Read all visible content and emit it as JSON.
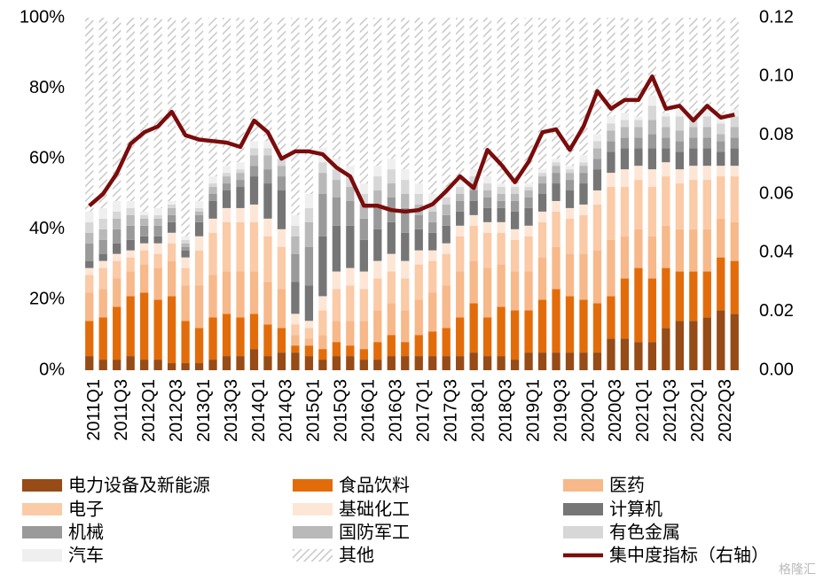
{
  "chart_data": {
    "type": "stacked_bar_line",
    "categories": [
      "2011Q1",
      null,
      "2011Q3",
      null,
      "2012Q1",
      null,
      "2012Q3",
      null,
      "2013Q1",
      null,
      "2013Q3",
      null,
      "2014Q1",
      null,
      "2014Q3",
      null,
      "2015Q1",
      null,
      "2015Q3",
      null,
      "2016Q1",
      null,
      "2016Q3",
      null,
      "2017Q1",
      null,
      "2017Q3",
      null,
      "2018Q1",
      null,
      "2018Q3",
      null,
      "2019Q1",
      null,
      "2019Q3",
      null,
      "2020Q1",
      null,
      "2020Q3",
      null,
      "2021Q1",
      null,
      "2021Q3",
      null,
      "2022Q1",
      null,
      "2022Q3",
      null
    ],
    "series": [
      {
        "name": "电力设备及新能源",
        "color": "#974b16",
        "values": [
          4,
          3,
          3,
          4,
          3,
          3,
          2,
          2,
          2,
          3,
          4,
          4,
          6,
          4,
          5,
          5,
          4,
          3,
          4,
          4,
          3,
          3,
          4,
          4,
          4,
          4,
          4,
          4,
          5,
          4,
          4,
          3,
          5,
          5,
          5,
          5,
          5,
          5,
          9,
          9,
          8,
          8,
          12,
          14,
          14,
          15,
          17,
          16
        ]
      },
      {
        "name": "食品饮料",
        "color": "#e36c0a",
        "values": [
          10,
          12,
          15,
          17,
          19,
          17,
          19,
          12,
          10,
          12,
          12,
          11,
          10,
          9,
          7,
          2,
          3,
          3,
          4,
          3,
          3,
          5,
          6,
          4,
          6,
          7,
          8,
          11,
          14,
          11,
          14,
          14,
          12,
          15,
          18,
          16,
          15,
          14,
          12,
          17,
          21,
          18,
          17,
          14,
          14,
          13,
          15,
          15
        ]
      },
      {
        "name": "医药",
        "color": "#f7b88a",
        "values": [
          8,
          8,
          8,
          7,
          8,
          9,
          10,
          10,
          12,
          12,
          12,
          13,
          12,
          12,
          11,
          3,
          2,
          4,
          6,
          7,
          8,
          9,
          9,
          9,
          10,
          11,
          12,
          13,
          12,
          14,
          12,
          11,
          11,
          12,
          12,
          12,
          13,
          15,
          16,
          12,
          11,
          12,
          12,
          12,
          12,
          12,
          11,
          11
        ]
      },
      {
        "name": "电子",
        "color": "#fbcaa6",
        "values": [
          5,
          6,
          5,
          4,
          4,
          4,
          5,
          5,
          10,
          12,
          14,
          14,
          14,
          13,
          12,
          3,
          3,
          7,
          9,
          10,
          9,
          9,
          9,
          9,
          10,
          9,
          9,
          10,
          10,
          10,
          9,
          9,
          10,
          10,
          10,
          10,
          11,
          13,
          15,
          14,
          14,
          14,
          14,
          13,
          14,
          14,
          12,
          13
        ]
      },
      {
        "name": "基础化工",
        "color": "#fde6d6",
        "values": [
          2,
          2,
          2,
          2,
          2,
          3,
          3,
          3,
          4,
          4,
          4,
          4,
          5,
          5,
          5,
          3,
          2,
          4,
          5,
          5,
          5,
          5,
          5,
          5,
          4,
          3,
          3,
          3,
          3,
          3,
          3,
          3,
          3,
          3,
          3,
          3,
          3,
          4,
          4,
          5,
          4,
          5,
          4,
          4,
          4,
          4,
          3,
          3
        ]
      },
      {
        "name": "计算机",
        "color": "#767676",
        "values": [
          2,
          2,
          3,
          3,
          2,
          2,
          3,
          2,
          4,
          5,
          5,
          6,
          8,
          10,
          11,
          9,
          10,
          17,
          13,
          12,
          9,
          9,
          9,
          8,
          6,
          5,
          5,
          4,
          4,
          4,
          4,
          5,
          5,
          5,
          5,
          5,
          6,
          6,
          6,
          6,
          5,
          6,
          4,
          5,
          5,
          5,
          4,
          5
        ]
      },
      {
        "name": "机械",
        "color": "#9a9a9a",
        "values": [
          5,
          4,
          4,
          4,
          3,
          3,
          2,
          1,
          2,
          2,
          2,
          2,
          3,
          4,
          4,
          8,
          11,
          12,
          8,
          7,
          6,
          7,
          7,
          7,
          4,
          3,
          3,
          3,
          3,
          3,
          2,
          3,
          3,
          3,
          3,
          3,
          3,
          3,
          3,
          3,
          3,
          4,
          3,
          3,
          3,
          3,
          3,
          3
        ]
      },
      {
        "name": "国防军工",
        "color": "#b9b9b9",
        "values": [
          3,
          3,
          3,
          3,
          2,
          2,
          2,
          1,
          1,
          2,
          2,
          2,
          3,
          4,
          3,
          5,
          7,
          6,
          5,
          4,
          4,
          4,
          4,
          4,
          3,
          3,
          3,
          2,
          2,
          2,
          2,
          2,
          2,
          2,
          2,
          2,
          2,
          3,
          3,
          3,
          3,
          4,
          3,
          3,
          3,
          3,
          2,
          3
        ]
      },
      {
        "name": "有色金属",
        "color": "#d7d7d7",
        "values": [
          3,
          3,
          2,
          2,
          1,
          1,
          1,
          1,
          1,
          1,
          1,
          1,
          2,
          2,
          2,
          3,
          4,
          3,
          3,
          3,
          3,
          4,
          4,
          4,
          3,
          2,
          2,
          2,
          2,
          2,
          2,
          2,
          1,
          1,
          1,
          1,
          1,
          2,
          2,
          2,
          2,
          4,
          3,
          4,
          3,
          3,
          3,
          3
        ]
      },
      {
        "name": "汽车",
        "color": "#efefef",
        "values": [
          3,
          3,
          3,
          2,
          1,
          2,
          1,
          1,
          2,
          2,
          2,
          2,
          2,
          2,
          2,
          3,
          4,
          4,
          3,
          3,
          3,
          3,
          3,
          3,
          3,
          3,
          3,
          3,
          2,
          2,
          1,
          1,
          1,
          1,
          1,
          1,
          2,
          2,
          2,
          2,
          1,
          3,
          1,
          2,
          1,
          2,
          2,
          2
        ]
      },
      {
        "name": "其他",
        "color": "#c8c8c8",
        "pattern": "hatch",
        "values": [
          55,
          54,
          52,
          52,
          55,
          54,
          52,
          62,
          52,
          45,
          42,
          41,
          35,
          35,
          38,
          56,
          50,
          37,
          40,
          42,
          47,
          42,
          40,
          43,
          47,
          50,
          48,
          45,
          43,
          45,
          47,
          47,
          47,
          43,
          40,
          42,
          39,
          33,
          28,
          27,
          28,
          22,
          27,
          26,
          27,
          26,
          28,
          26
        ]
      },
      {
        "name": "集中度指标（右轴）",
        "color": "#7a0c0c",
        "axis": "y2",
        "kind": "line",
        "values": [
          0.056,
          0.06,
          0.067,
          0.077,
          0.081,
          0.083,
          0.088,
          0.08,
          0.0785,
          0.078,
          0.0775,
          0.076,
          0.085,
          0.081,
          0.072,
          0.0745,
          0.0745,
          0.0735,
          0.069,
          0.066,
          0.056,
          0.056,
          0.0545,
          0.054,
          0.0545,
          0.0565,
          0.061,
          0.066,
          0.062,
          0.075,
          0.07,
          0.064,
          0.071,
          0.081,
          0.082,
          0.075,
          0.083,
          0.095,
          0.089,
          0.092,
          0.092,
          0.1,
          0.089,
          0.09,
          0.085,
          0.09,
          0.086,
          0.087
        ]
      }
    ],
    "ylim": [
      0,
      100
    ],
    "yticks": [
      {
        "value": 0,
        "label": "0%"
      },
      {
        "value": 20,
        "label": "20%"
      },
      {
        "value": 40,
        "label": "40%"
      },
      {
        "value": 60,
        "label": "60%"
      },
      {
        "value": 80,
        "label": "80%"
      },
      {
        "value": 100,
        "label": "100%"
      }
    ],
    "y2lim": [
      0,
      0.12
    ],
    "y2ticks": [
      {
        "value": 0,
        "label": "0.00"
      },
      0.02,
      0.04,
      0.06,
      0.08,
      {
        "value": 0.1,
        "label": "0.10"
      },
      0.12
    ],
    "grid": false,
    "legend": "bottom",
    "watermark": "格隆汇"
  }
}
